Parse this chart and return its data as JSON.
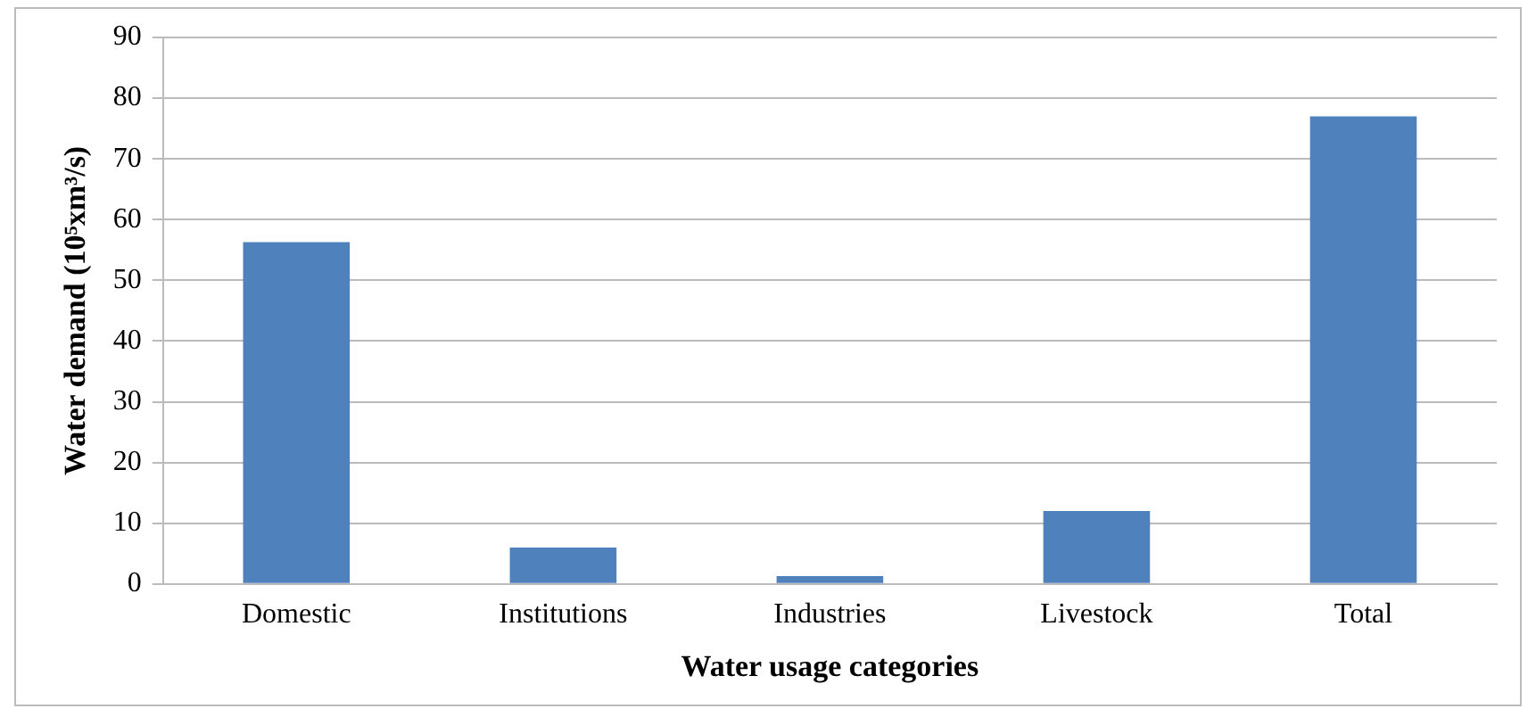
{
  "chart_data": {
    "type": "bar",
    "xlabel": "Water usage categories",
    "ylabel": "Water demand (10⁵xm³/s)",
    "categories": [
      "Domestic",
      "Institutions",
      "Industries",
      "Livestock",
      "Total"
    ],
    "values": [
      56.3,
      6,
      1.3,
      12,
      77
    ],
    "color": "#4f81bd",
    "ylim": [
      0,
      90
    ],
    "yticks": [
      0,
      10,
      20,
      30,
      40,
      50,
      60,
      70,
      80,
      90
    ],
    "grid": "y",
    "legend": false
  }
}
